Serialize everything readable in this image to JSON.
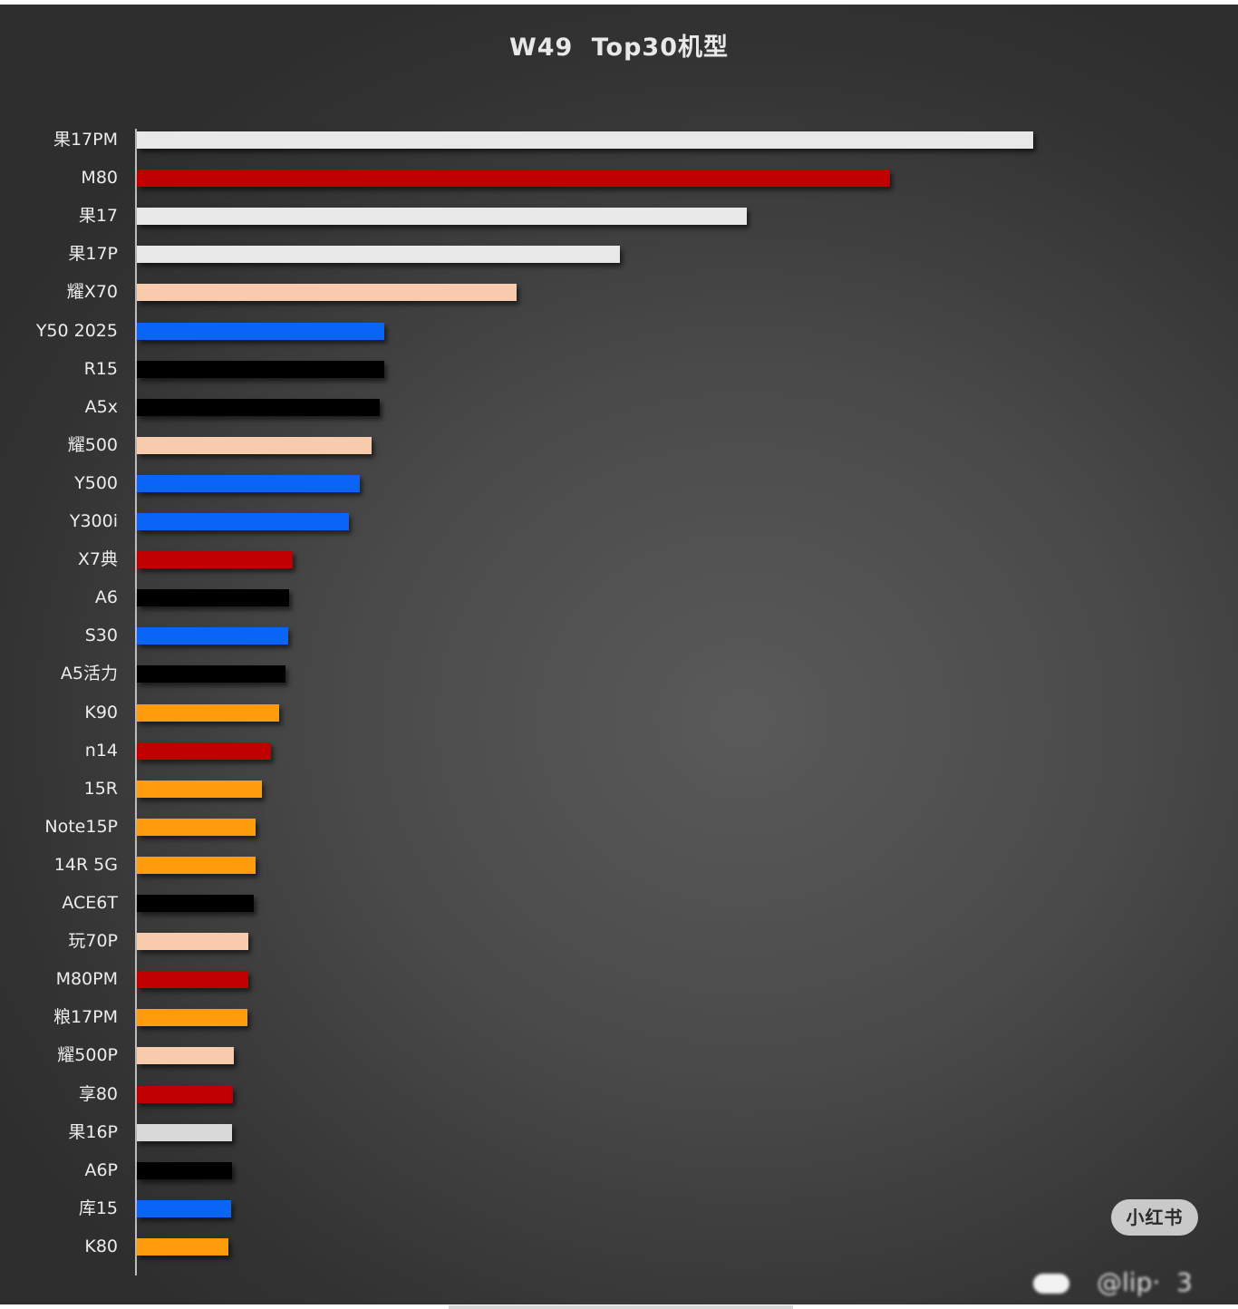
{
  "chart_data": {
    "type": "bar",
    "orientation": "horizontal",
    "title": "W49  Top30机型",
    "xlabel": "",
    "ylabel": "",
    "grid": false,
    "legend": null,
    "value_unit": "relative bar length (px, no numeric axis shown)",
    "categories": [
      "果17PM",
      "M80",
      "果17",
      "果17P",
      "耀X70",
      "Y50 2025",
      "R15",
      "A5x",
      "耀500",
      "Y500",
      "Y300i",
      "X7典",
      "A6",
      "S30",
      "A5活力",
      "K90",
      "n14",
      "15R",
      "Note15P",
      "14R 5G",
      "ACE6T",
      "玩70P",
      "M80PM",
      "粮17PM",
      "耀500P",
      "享80",
      "果16P",
      "A6P",
      "库15",
      "K80"
    ],
    "values": [
      989,
      831,
      673,
      533,
      419,
      273,
      273,
      268,
      259,
      246,
      234,
      172,
      168,
      167,
      164,
      157,
      148,
      138,
      131,
      131,
      129,
      123,
      123,
      122,
      107,
      106,
      105,
      105,
      104,
      101
    ],
    "colors": [
      "#e8e8e8",
      "#c00000",
      "#e8e8e8",
      "#e8e8e8",
      "#f8cbad",
      "#0a64f5",
      "#000000",
      "#000000",
      "#f8cbad",
      "#0a64f5",
      "#0a64f5",
      "#c00000",
      "#000000",
      "#0a64f5",
      "#000000",
      "#ff9c0e",
      "#c00000",
      "#ff9c0e",
      "#ff9c0e",
      "#ff9c0e",
      "#000000",
      "#f8cbad",
      "#c00000",
      "#ff9c0e",
      "#f8cbad",
      "#c00000",
      "#d9d9d9",
      "#000000",
      "#0a64f5",
      "#ff9c0e"
    ]
  },
  "watermark": {
    "badge": "小红书",
    "handle": "@lip· ‍ 3"
  }
}
